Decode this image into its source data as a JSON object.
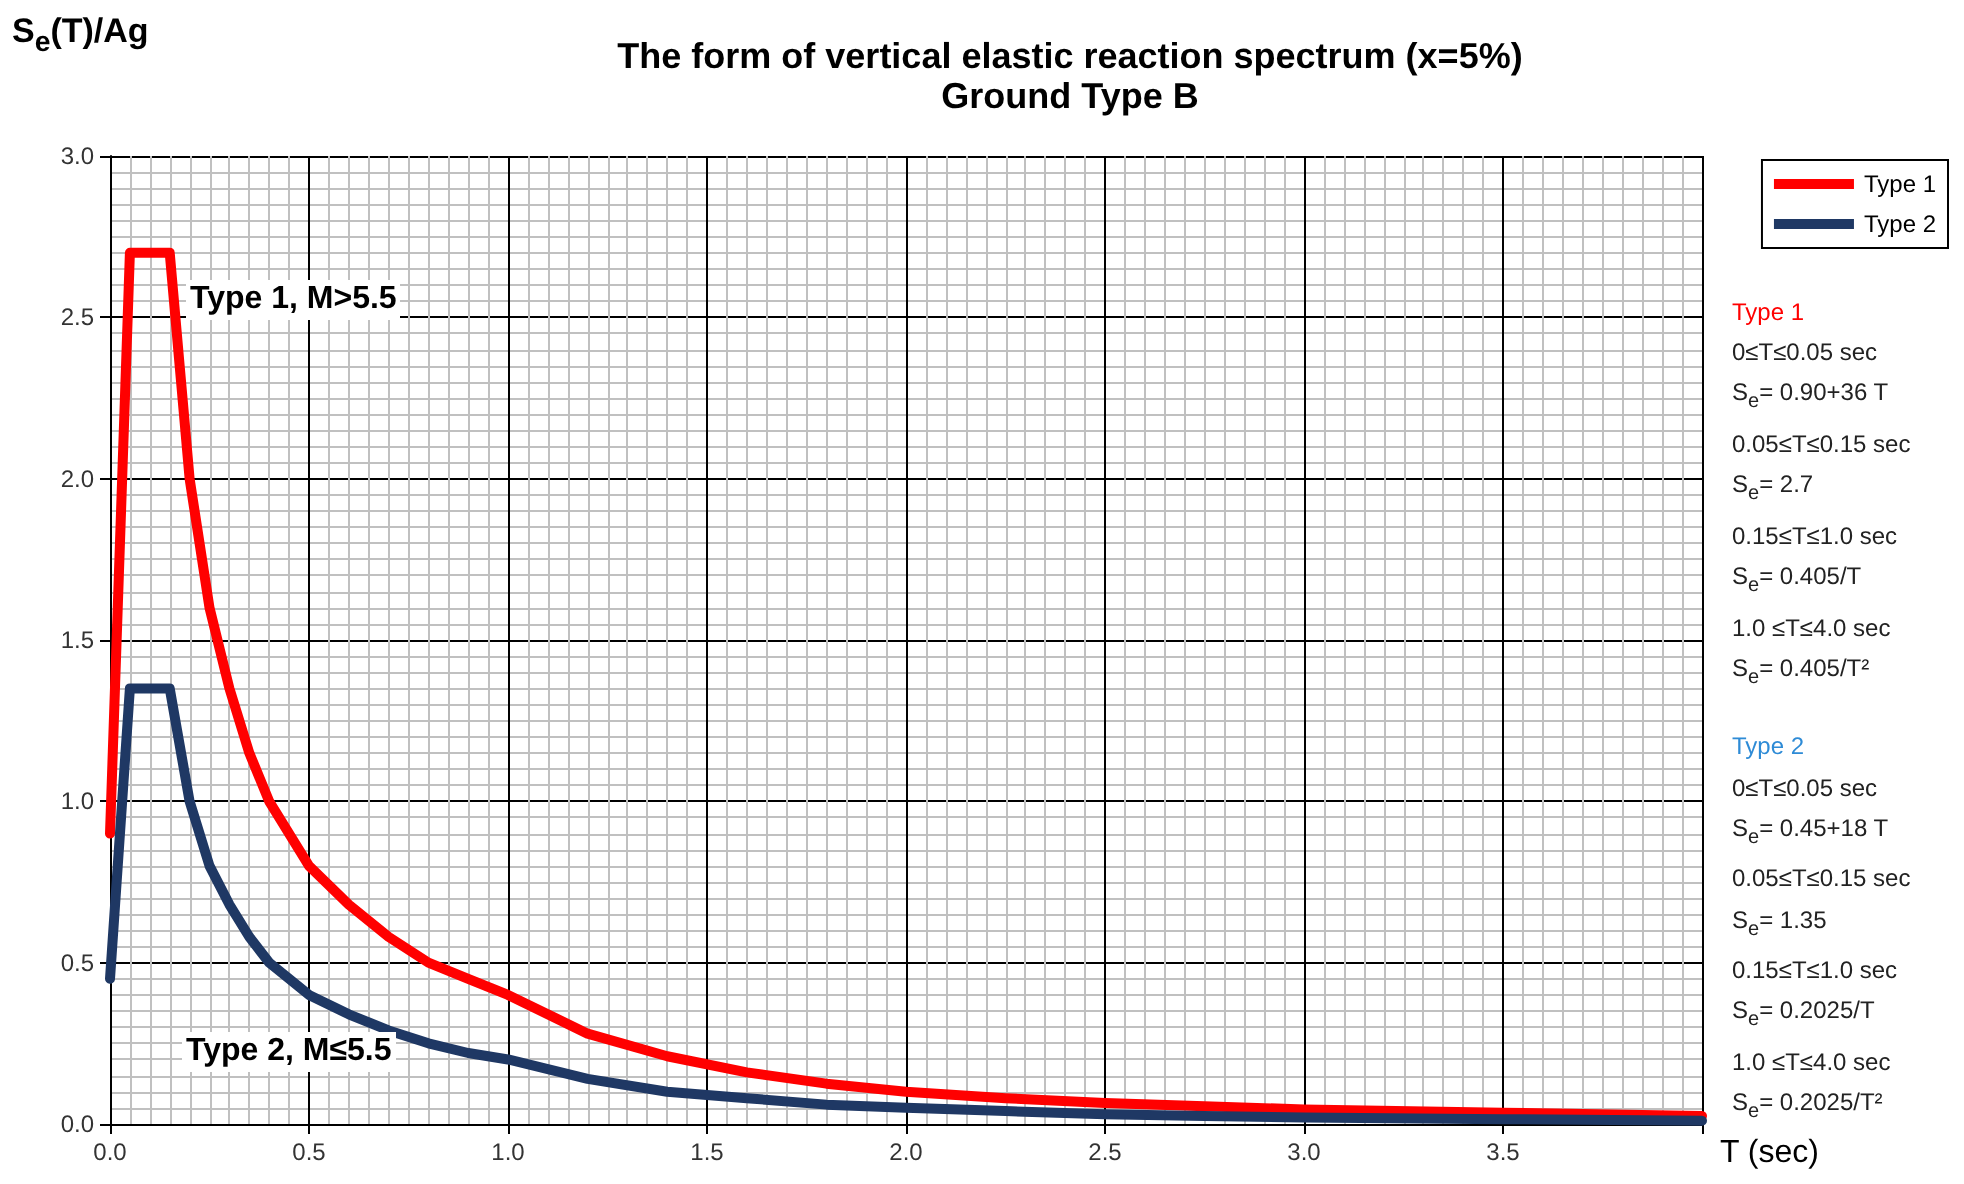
{
  "chart_data": {
    "type": "line",
    "title": "The form of vertical elastic reaction spectrum (x=5%)",
    "subtitle": "Ground Type B",
    "xlabel": "T (sec)",
    "ylabel": "S$_{e}$(T)/Ag",
    "x": [
      0,
      0.05,
      0.15,
      0.2,
      0.25,
      0.3,
      0.35,
      0.4,
      0.5,
      0.6,
      0.7,
      0.8,
      0.9,
      1.0,
      1.2,
      1.4,
      1.6,
      1.8,
      2.0,
      2.25,
      2.5,
      2.75,
      3.0,
      3.5,
      4.0
    ],
    "series": [
      {
        "name": "Type 1",
        "color": "#ff0000",
        "values": [
          0.9,
          2.7,
          2.7,
          2.0,
          1.6,
          1.35,
          1.15,
          1.0,
          0.8,
          0.68,
          0.58,
          0.5,
          0.45,
          0.4,
          0.28,
          0.21,
          0.16,
          0.125,
          0.1,
          0.08,
          0.065,
          0.055,
          0.045,
          0.035,
          0.025
        ]
      },
      {
        "name": "Type 2",
        "color": "#1f3864",
        "values": [
          0.45,
          1.35,
          1.35,
          1.0,
          0.8,
          0.68,
          0.58,
          0.5,
          0.4,
          0.34,
          0.29,
          0.25,
          0.22,
          0.2,
          0.14,
          0.1,
          0.08,
          0.06,
          0.05,
          0.04,
          0.03,
          0.025,
          0.02,
          0.015,
          0.01
        ]
      }
    ],
    "xlim": [
      0,
      4
    ],
    "xticks": [
      {
        "value": 0,
        "label": "0.0"
      },
      {
        "value": 0.5,
        "label": "0.5"
      },
      {
        "value": 1,
        "label": "1.0"
      },
      {
        "value": 1.5,
        "label": "1.5"
      },
      {
        "value": 2,
        "label": "2.0"
      },
      {
        "value": 2.5,
        "label": "2.5"
      },
      {
        "value": 3,
        "label": "3.0"
      },
      {
        "value": 3.5,
        "label": "3.5"
      },
      {
        "value": 4,
        "label": null
      }
    ],
    "ylim": [
      0,
      3
    ],
    "yticks": [
      {
        "value": 0,
        "label": "0.0"
      },
      {
        "value": 0.5,
        "label": "0.5"
      },
      {
        "value": 1,
        "label": "1.0"
      },
      {
        "value": 1.5,
        "label": "1.5"
      },
      {
        "value": 2,
        "label": "2.0"
      },
      {
        "value": 2.5,
        "label": "2.5"
      },
      {
        "value": 3,
        "label": "3.0"
      }
    ],
    "grid": true,
    "legend": "top right",
    "marker": "none",
    "line_style": "solid",
    "annotations": [
      "Type 1, M>5.5",
      "Type 2, M≤5.5",
      "Type 1\n0≤T≤0.05 sec\nS$_{e}$= 0.90+36 T\n0.05≤T≤0.15 sec\nS$_{e}$= 2.7\n0.15≤T≤1.0 sec\nS$_{e}$= 0.405/T\n1.0 ≤T≤4.0 sec\nS$_{e}$= 0.405/T²",
      "Type 2\n0≤T≤0.05 sec\nS$_{e}$= 0.45+18 T\n0.05≤T≤0.15 sec\nS$_{e}$= 1.35\n0.15≤T≤1.0 sec\nS$_{e}$= 0.2025/T\n1.0 ≤T≤4.0 sec\nS$_{e}$= 0.2025/T²"
    ]
  }
}
